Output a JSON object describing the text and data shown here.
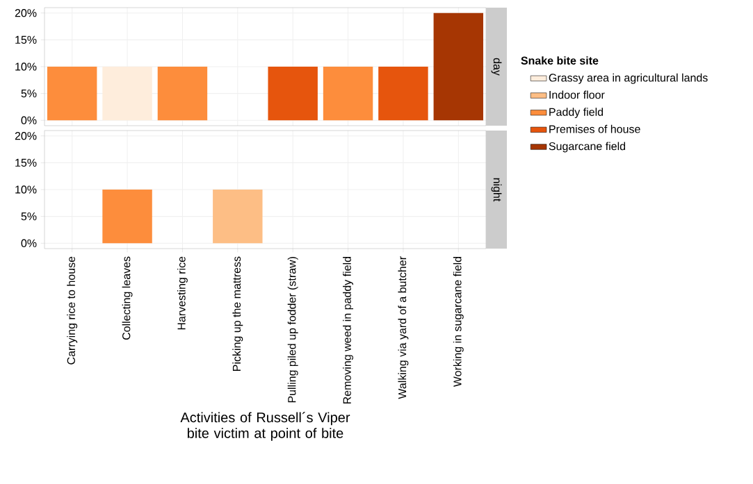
{
  "chart_data": [
    {
      "type": "bar",
      "title": "day",
      "categories": [
        null,
        null,
        null,
        null,
        null,
        null,
        null,
        null
      ],
      "series": [
        {
          "name": "Grassy area in agricultural lands",
          "color": "#feeddc",
          "values": [
            null,
            10,
            null,
            null,
            null,
            null,
            null,
            null
          ]
        },
        {
          "name": "Indoor floor",
          "color": "#fdbe85",
          "values": [
            null,
            null,
            null,
            null,
            null,
            null,
            null,
            null
          ]
        },
        {
          "name": "Paddy field",
          "color": "#fd8d3c",
          "values": [
            10,
            null,
            10,
            null,
            null,
            10,
            null,
            null
          ]
        },
        {
          "name": "Premises of house",
          "color": "#e6550d",
          "values": [
            null,
            null,
            null,
            null,
            10,
            null,
            10,
            null
          ]
        },
        {
          "name": "Sugarcane field",
          "color": "#a63603",
          "values": [
            null,
            null,
            null,
            null,
            null,
            null,
            null,
            20
          ]
        }
      ],
      "ylim": [
        -1,
        21
      ],
      "yticks": [
        {
          "value": 0,
          "label": "0%"
        },
        {
          "value": 5,
          "label": "5%"
        },
        {
          "value": 10,
          "label": "10%"
        },
        {
          "value": 15,
          "label": "15%"
        },
        {
          "value": 20,
          "label": "20%"
        }
      ],
      "grid": true,
      "legend": "right",
      "legend_title": "Snake bite site",
      "tick_labels": "y"
    },
    {
      "type": "bar",
      "title": "night",
      "categories": [
        "Carrying rice to house",
        "Collecting leaves",
        "Harvesting rice",
        "Picking up the mattress",
        "Pulling piled up fodder (straw)",
        "Removing weed in paddy field",
        "Walking via yard of a butcher",
        "Working in sugarcane field"
      ],
      "xlabel": "Activities of Russell´s Viper bite victim at point of bite",
      "series": [
        {
          "color": "#fd8d3c",
          "values": [
            null,
            10,
            null,
            null,
            null,
            null,
            null,
            null
          ]
        },
        {
          "color": "#fdbe85",
          "values": [
            null,
            null,
            null,
            10,
            null,
            null,
            null,
            null
          ]
        }
      ],
      "ylim": [
        -1,
        21
      ],
      "yticks": [
        {
          "value": 0,
          "label": "0%"
        },
        {
          "value": 5,
          "label": "5%"
        },
        {
          "value": 10,
          "label": "10%"
        },
        {
          "value": 15,
          "label": "15%"
        },
        {
          "value": 20,
          "label": "20%"
        }
      ],
      "grid": true
    }
  ]
}
